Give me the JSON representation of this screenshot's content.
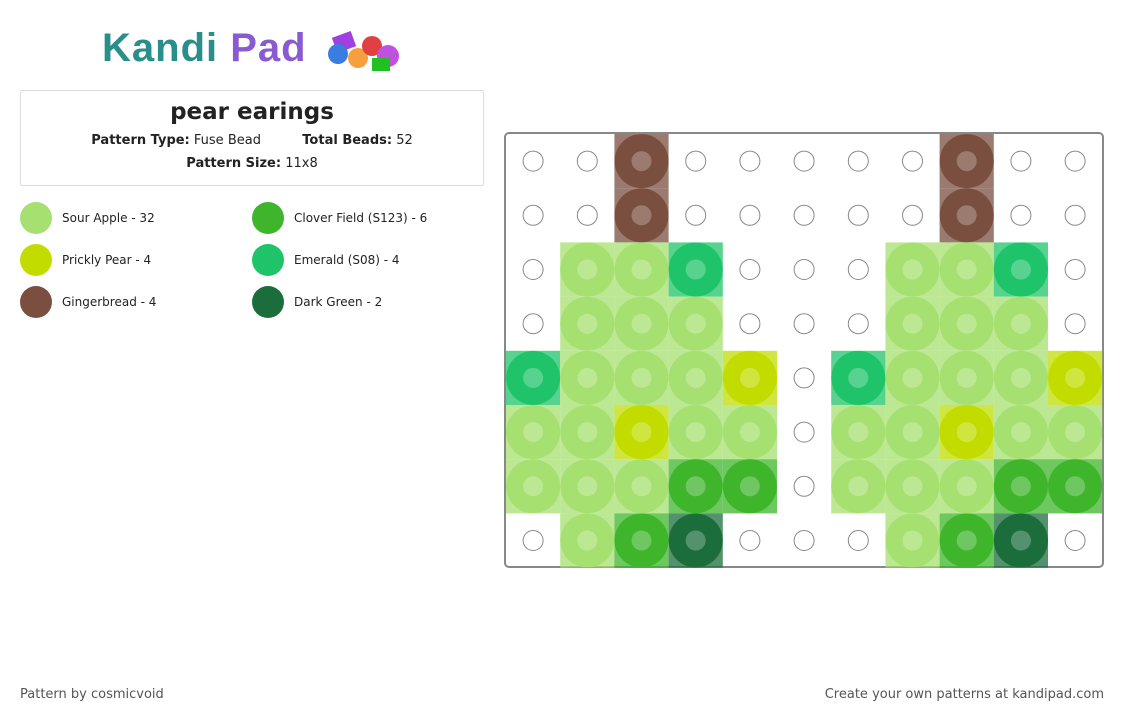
{
  "header": {
    "logo_a": "Kandi",
    "logo_b": "Pad",
    "title": "pear earings",
    "type_label": "Pattern Type:",
    "type": "Fuse Bead",
    "total_label": "Total Beads:",
    "total": 52,
    "size_label": "Pattern Size:",
    "size": "11x8"
  },
  "legend": [
    {
      "label": "Sour Apple - 32",
      "color": "#a6e070"
    },
    {
      "label": "Clover Field (S123) - 6",
      "color": "#3eb52b"
    },
    {
      "label": "Prickly Pear - 4",
      "color": "#c2dc00"
    },
    {
      "label": "Emerald (S08) - 4",
      "color": "#1fc46a"
    },
    {
      "label": "Gingerbread - 4",
      "color": "#7a4f40"
    },
    {
      "label": "Dark Green - 2",
      "color": "#1b6e3c"
    }
  ],
  "grid": [
    [
      null,
      null,
      "#7a4f40",
      null,
      null,
      null,
      null,
      null,
      "#7a4f40",
      null,
      null
    ],
    [
      null,
      null,
      "#7a4f40",
      null,
      null,
      null,
      null,
      null,
      "#7a4f40",
      null,
      null
    ],
    [
      null,
      "#a6e070",
      "#a6e070",
      "#1fc46a",
      null,
      null,
      null,
      "#a6e070",
      "#a6e070",
      "#1fc46a",
      null
    ],
    [
      null,
      "#a6e070",
      "#a6e070",
      "#a6e070",
      null,
      null,
      null,
      "#a6e070",
      "#a6e070",
      "#a6e070",
      null
    ],
    [
      "#1fc46a",
      "#a6e070",
      "#a6e070",
      "#a6e070",
      "#c2dc00",
      null,
      "#1fc46a",
      "#a6e070",
      "#a6e070",
      "#a6e070",
      "#c2dc00"
    ],
    [
      "#a6e070",
      "#a6e070",
      "#c2dc00",
      "#a6e070",
      "#a6e070",
      null,
      "#a6e070",
      "#a6e070",
      "#c2dc00",
      "#a6e070",
      "#a6e070"
    ],
    [
      "#a6e070",
      "#a6e070",
      "#a6e070",
      "#3eb52b",
      "#3eb52b",
      null,
      "#a6e070",
      "#a6e070",
      "#a6e070",
      "#3eb52b",
      "#3eb52b"
    ],
    [
      null,
      "#a6e070",
      "#3eb52b",
      "#1b6e3c",
      null,
      null,
      null,
      "#a6e070",
      "#3eb52b",
      "#1b6e3c",
      null
    ]
  ],
  "footer": {
    "left": "Pattern by cosmicvoid",
    "right": "Create your own patterns at kandipad.com"
  }
}
